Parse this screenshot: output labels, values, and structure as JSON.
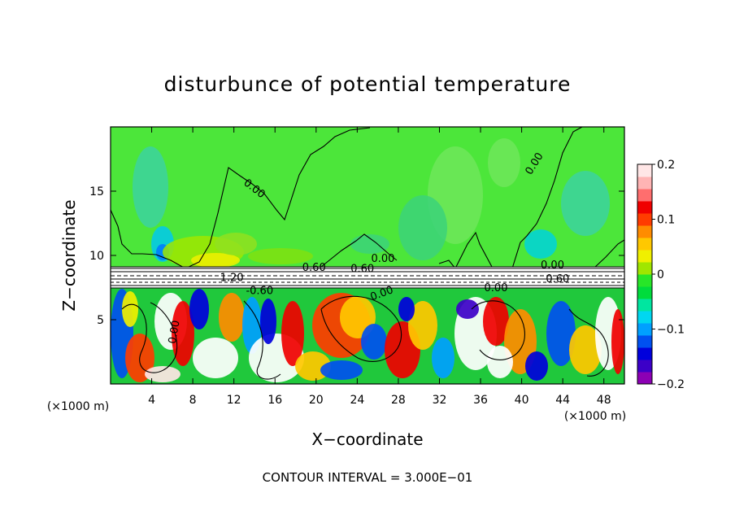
{
  "chart_data": {
    "type": "heatmap",
    "title": "disturbunce of potential temperature",
    "xlabel": "X−coordinate",
    "ylabel": "Z−coordinate",
    "x_unit_label": "(×1000 m)",
    "y_unit_label": "(×1000 m)",
    "footer": "CONTOUR INTERVAL = 3.000E−01",
    "xlim": [
      0,
      50
    ],
    "ylim": [
      0,
      20
    ],
    "x_ticks": [
      {
        "value": 4,
        "label": "4"
      },
      {
        "value": 8,
        "label": "8"
      },
      {
        "value": 12,
        "label": "12"
      },
      {
        "value": 16,
        "label": "16"
      },
      {
        "value": 20,
        "label": "20"
      },
      {
        "value": 24,
        "label": "24"
      },
      {
        "value": 28,
        "label": "28"
      },
      {
        "value": 32,
        "label": "32"
      },
      {
        "value": 36,
        "label": "36"
      },
      {
        "value": 40,
        "label": "40"
      },
      {
        "value": 44,
        "label": "44"
      },
      {
        "value": 48,
        "label": "48"
      }
    ],
    "y_ticks": [
      {
        "value": 5,
        "label": "5"
      },
      {
        "value": 10,
        "label": "10"
      },
      {
        "value": 15,
        "label": "15"
      }
    ],
    "colorbar": {
      "min": -0.2,
      "max": 0.2,
      "ticks": [
        {
          "value": 0.2,
          "label": "0.2"
        },
        {
          "value": 0.1,
          "label": "0.1"
        },
        {
          "value": 0,
          "label": "0"
        },
        {
          "value": -0.1,
          "label": "−0.1"
        },
        {
          "value": -0.2,
          "label": "−0.2"
        }
      ],
      "colors": [
        "#8c00b4",
        "#3c00c8",
        "#0000dc",
        "#0050f0",
        "#00a0ff",
        "#00d7f0",
        "#00e6a0",
        "#00dc3c",
        "#28e628",
        "#a0e600",
        "#f0f000",
        "#ffc800",
        "#ff8c00",
        "#ff3c00",
        "#f00000",
        "#ff6e6e",
        "#ffb4b4",
        "#ffe6e6"
      ]
    },
    "contour_labels": [
      {
        "x": 13.8,
        "y": 15.0,
        "text": "0.00",
        "rot": 38
      },
      {
        "x": 41.5,
        "y": 17.0,
        "text": "0.00",
        "rot": -58
      },
      {
        "x": 19.8,
        "y": 8.8,
        "text": "0.60",
        "rot": 0
      },
      {
        "x": 24.5,
        "y": 8.7,
        "text": "0.60",
        "rot": 0
      },
      {
        "x": 26.5,
        "y": 9.5,
        "text": "0.00",
        "rot": 0
      },
      {
        "x": 43.0,
        "y": 9.0,
        "text": "0.00",
        "rot": 0
      },
      {
        "x": 43.5,
        "y": 7.9,
        "text": "0.60",
        "rot": 0
      },
      {
        "x": 37.5,
        "y": 7.2,
        "text": "0.00",
        "rot": 0
      },
      {
        "x": 26.5,
        "y": 6.8,
        "text": "0.00",
        "rot": -20
      },
      {
        "x": 11.8,
        "y": 8.0,
        "text": "1.20",
        "rot": 0
      },
      {
        "x": 6.5,
        "y": 4.0,
        "text": "0.00",
        "rot": -80
      },
      {
        "x": 14.5,
        "y": 7.0,
        "text": "-0.60",
        "rot": 0
      }
    ]
  }
}
